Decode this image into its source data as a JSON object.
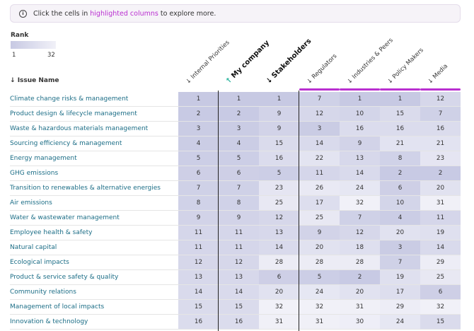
{
  "info": {
    "icon": "info-icon",
    "text_before": "Click the cells in",
    "highlight": "highlighted columns",
    "text_after": "to explore more."
  },
  "legend": {
    "title": "Rank",
    "min": "1",
    "max": "32",
    "colors": [
      "#c7c9e3",
      "#f1f1f8"
    ]
  },
  "issue_header": "Issue Name",
  "columns": [
    {
      "label": "Internal Priorities",
      "highlighted": false,
      "bold": false
    },
    {
      "label": "My company",
      "highlighted": false,
      "bold": true
    },
    {
      "label": "Stakeholders",
      "highlighted": false,
      "bold": true
    },
    {
      "label": "Regulators",
      "highlighted": true,
      "bold": false
    },
    {
      "label": "Industries & Peers",
      "highlighted": true,
      "bold": false
    },
    {
      "label": "Policy Makers",
      "highlighted": true,
      "bold": false
    },
    {
      "label": "Media",
      "highlighted": true,
      "bold": false
    }
  ],
  "rows": [
    {
      "name": "Climate change risks & management",
      "values": [
        1,
        1,
        1,
        7,
        1,
        1,
        12
      ]
    },
    {
      "name": "Product design & lifecycle management",
      "values": [
        2,
        2,
        9,
        12,
        10,
        15,
        7
      ]
    },
    {
      "name": "Waste & hazardous materials management",
      "values": [
        3,
        3,
        9,
        3,
        16,
        16,
        16
      ]
    },
    {
      "name": "Sourcing efficiency & management",
      "values": [
        4,
        4,
        15,
        14,
        9,
        21,
        21
      ]
    },
    {
      "name": "Energy management",
      "values": [
        5,
        5,
        16,
        22,
        13,
        8,
        23
      ]
    },
    {
      "name": "GHG emissions",
      "values": [
        6,
        6,
        5,
        11,
        14,
        2,
        2
      ]
    },
    {
      "name": "Transition to renewables & alternative energies",
      "values": [
        7,
        7,
        23,
        26,
        24,
        6,
        20
      ]
    },
    {
      "name": "Air emissions",
      "values": [
        8,
        8,
        25,
        17,
        32,
        10,
        31
      ]
    },
    {
      "name": "Water & wastewater management",
      "values": [
        9,
        9,
        12,
        25,
        7,
        4,
        11
      ]
    },
    {
      "name": "Employee health & safety",
      "values": [
        11,
        11,
        13,
        9,
        12,
        20,
        19
      ]
    },
    {
      "name": "Natural capital",
      "values": [
        11,
        11,
        14,
        20,
        18,
        3,
        14
      ]
    },
    {
      "name": "Ecological impacts",
      "values": [
        12,
        12,
        28,
        28,
        28,
        7,
        29
      ]
    },
    {
      "name": "Product & service safety & quality",
      "values": [
        13,
        13,
        6,
        5,
        2,
        19,
        25
      ]
    },
    {
      "name": "Community relations",
      "values": [
        14,
        14,
        20,
        24,
        20,
        17,
        6
      ]
    },
    {
      "name": "Management of local impacts",
      "values": [
        15,
        15,
        32,
        32,
        31,
        29,
        32
      ]
    },
    {
      "name": "Innovation & technology",
      "values": [
        16,
        16,
        31,
        31,
        30,
        24,
        15
      ]
    }
  ]
}
